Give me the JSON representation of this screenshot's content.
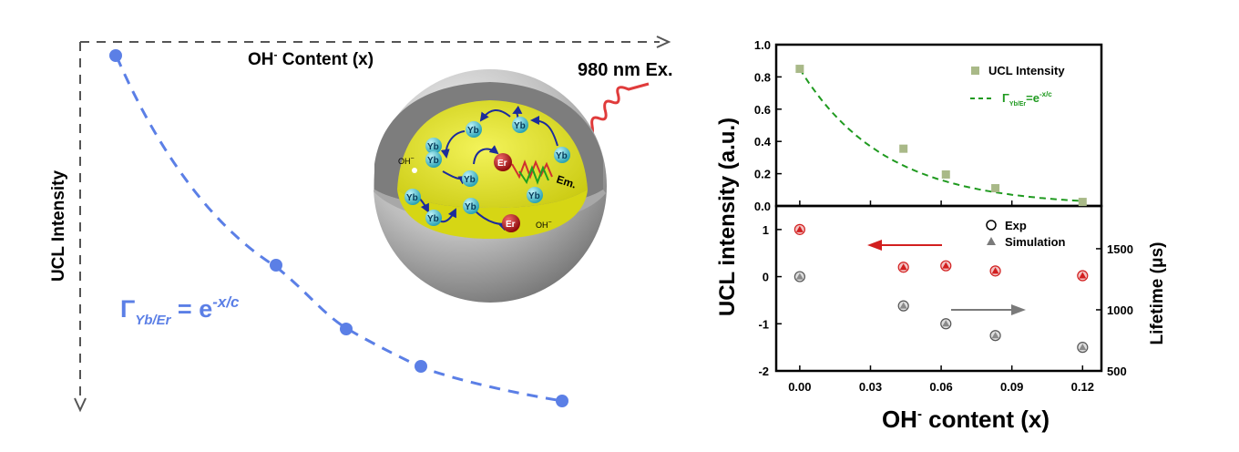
{
  "colors": {
    "blue": "#5b7fe6",
    "green_marker": "#a9b988",
    "green_fit": "#1f9a1f",
    "red": "#d21f1f",
    "gray": "#7a7a7a",
    "shell": "#b4b4b4",
    "core": "#e2e21a",
    "yb": "#3fb6c6",
    "er": "#a01818"
  },
  "schematic": {
    "x_axis_label": "OH",
    "x_axis_sup": "-",
    "x_axis_rest": " Content (x)",
    "y_axis_label": "UCL Intensity",
    "excitation_label": "980 nm Ex.",
    "equation_gamma": "Γ",
    "equation_sub": "Yb/Er",
    "equation_mid": " = e",
    "equation_exp": "-x/c",
    "ion_yb": "Yb",
    "ion_er": "Er",
    "defect_label": "OH",
    "defect_sup": "−",
    "emission_label": "Em.",
    "trend_points": [
      1.0,
      0.39,
      0.25,
      0.14,
      0.07
    ]
  },
  "chart_data": [
    {
      "type": "scatter",
      "panel": "top",
      "ylim": [
        0,
        1.0
      ],
      "yticks": [
        "0.0",
        "0.2",
        "0.4",
        "0.6",
        "0.8",
        "1.0"
      ],
      "series": [
        {
          "name": "UCL Intensity",
          "marker": "square",
          "x": [
            0.0,
            0.044,
            0.062,
            0.083,
            0.12
          ],
          "y": [
            0.85,
            0.355,
            0.195,
            0.11,
            0.025
          ]
        },
        {
          "name_prefix": "Γ",
          "name_sub": "Yb/Er",
          "name_mid": "=e",
          "name_sup": "-x/c",
          "type": "line",
          "style": "dashed",
          "decay_constant": 0.036,
          "amplitude": 0.85
        }
      ],
      "legend": "top-right"
    },
    {
      "type": "scatter",
      "panel": "bottom",
      "ylim": [
        -2,
        1.5
      ],
      "yticks": [
        "-2",
        "-1",
        "0",
        "1"
      ],
      "y2lim": [
        500,
        1850
      ],
      "y2ticks": [
        "500",
        "1000",
        "1500"
      ],
      "y2label": "Lifetime (μs)",
      "series": [
        {
          "name": "Exp",
          "marker": "open-circle",
          "axis": "left+right",
          "x": [
            0.0,
            0.044,
            0.062,
            0.083,
            0.12
          ],
          "y_red": [
            1.0,
            0.2,
            0.23,
            0.12,
            0.02
          ],
          "y_gray": [
            0.0,
            -0.62,
            -1.0,
            -1.25,
            -1.5
          ]
        },
        {
          "name": "Simulation",
          "marker": "triangle",
          "x": [
            0.0,
            0.044,
            0.062,
            0.083,
            0.12
          ],
          "y_red": [
            1.0,
            0.2,
            0.23,
            0.12,
            0.02
          ],
          "y_gray": [
            0.0,
            -0.62,
            -1.0,
            -1.25,
            -1.5
          ]
        }
      ],
      "arrows": [
        {
          "direction": "left",
          "color": "red"
        },
        {
          "direction": "right",
          "color": "gray"
        }
      ],
      "legend": "top-right"
    }
  ],
  "shared_axes": {
    "xlim": [
      -0.01,
      0.128
    ],
    "xticks": [
      "0.00",
      "0.03",
      "0.06",
      "0.09",
      "0.12"
    ],
    "xtick_values": [
      0.0,
      0.03,
      0.06,
      0.09,
      0.12
    ],
    "xlabel_main": "OH",
    "xlabel_sup": "-",
    "xlabel_rest": " content (x)",
    "ylabel": "UCL intensity (a.u.)"
  }
}
